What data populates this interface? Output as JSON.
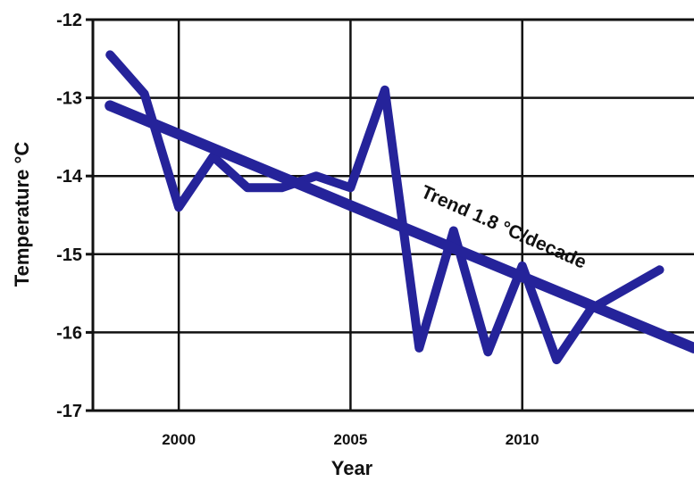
{
  "chart_data": {
    "type": "line",
    "title": "",
    "xlabel": "Year",
    "ylabel": "Temperature °C",
    "xlim": [
      1997.5,
      2015
    ],
    "ylim": [
      -17,
      -12
    ],
    "x_ticks": [
      2000,
      2005,
      2010
    ],
    "y_ticks": [
      -12,
      -13,
      -14,
      -15,
      -16,
      -17
    ],
    "x_tick_labels": [
      "2000",
      "2005",
      "2010"
    ],
    "y_tick_labels": [
      "-12",
      "-13",
      "-14",
      "-15",
      "-16",
      "-17"
    ],
    "grid": true,
    "legend": "none",
    "series": [
      {
        "x": [
          1998,
          1999,
          2000,
          2001,
          2002,
          2003,
          2004,
          2005,
          2006,
          2007,
          2008,
          2009,
          2010,
          2011,
          2012,
          2013,
          2014
        ],
        "values": [
          -12.45,
          -12.95,
          -14.4,
          -13.75,
          -14.15,
          -14.15,
          -14.0,
          -14.15,
          -12.9,
          -16.2,
          -14.7,
          -16.25,
          -15.15,
          -16.35,
          -15.7,
          -15.45,
          -15.2
        ],
        "color": "#25239a"
      },
      {
        "x": [
          1998,
          2015
        ],
        "values": [
          -13.1,
          -16.2
        ],
        "color": "#25239a"
      }
    ],
    "annotations": [
      {
        "text": "Trend 1.8 °C/decade"
      }
    ]
  }
}
